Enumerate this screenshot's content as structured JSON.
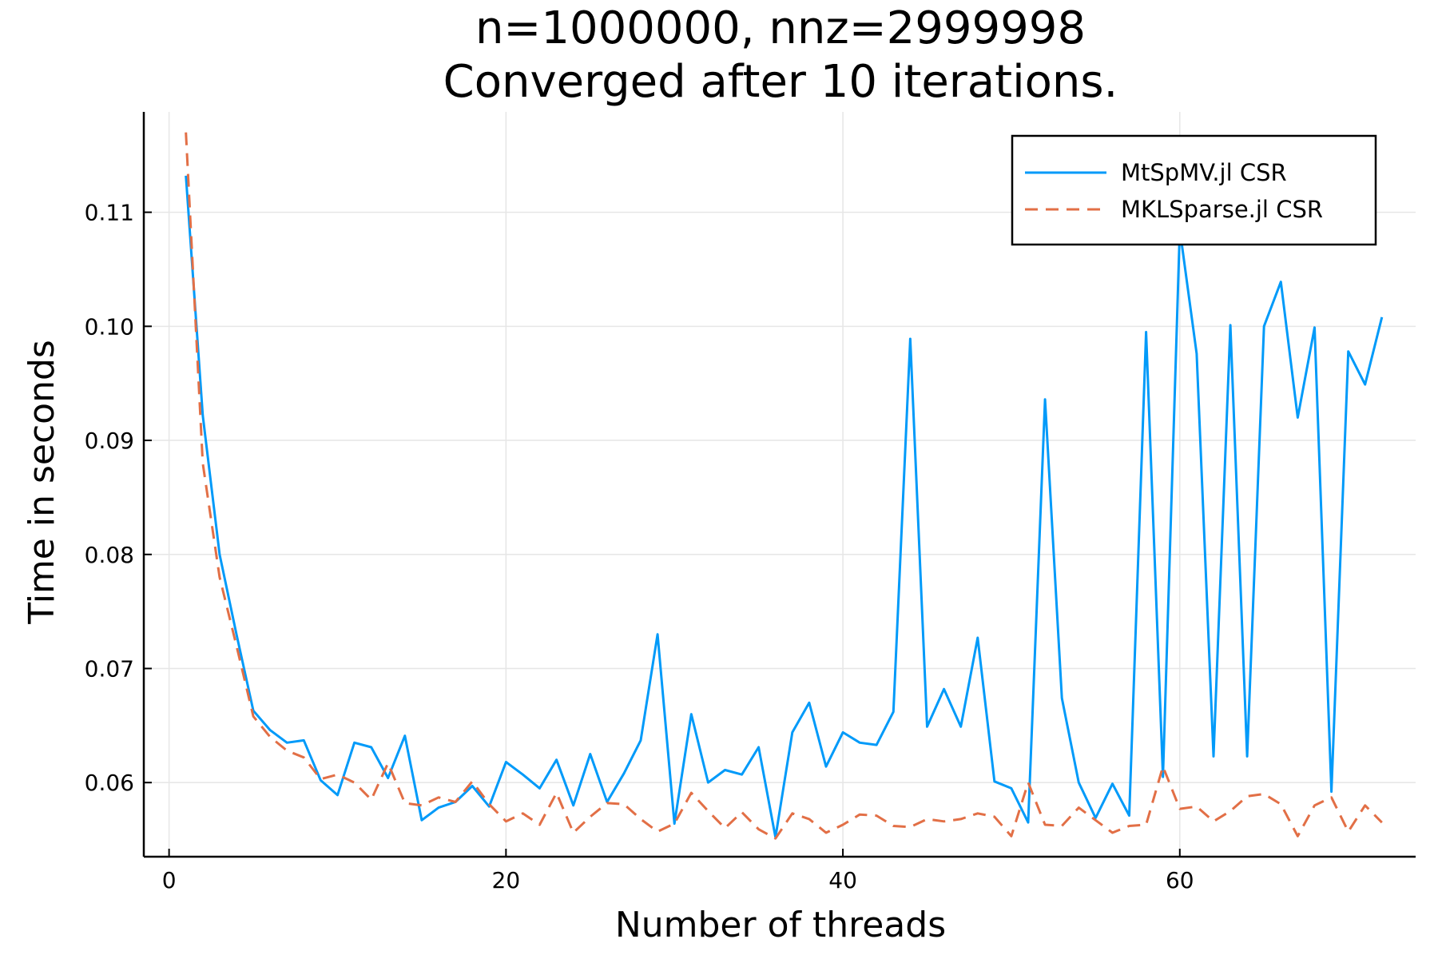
{
  "chart_data": {
    "type": "line",
    "title": [
      "n=1000000, nnz=2999998",
      "Converged after 10 iterations."
    ],
    "xlabel": "Number of threads",
    "ylabel": "Time in seconds",
    "xlim": [
      -1.5,
      74
    ],
    "ylim": [
      0.0535,
      0.1188
    ],
    "xticks": [
      0,
      20,
      40,
      60
    ],
    "xtick_labels": [
      "0",
      "20",
      "40",
      "60"
    ],
    "yticks": [
      0.06,
      0.07,
      0.08,
      0.09,
      0.1,
      0.11
    ],
    "ytick_labels": [
      "0.06",
      "0.07",
      "0.08",
      "0.09",
      "0.10",
      "0.11"
    ],
    "grid": true,
    "legend_position": "top-right",
    "x": [
      1,
      2,
      3,
      4,
      5,
      6,
      7,
      8,
      9,
      10,
      11,
      12,
      13,
      14,
      15,
      16,
      17,
      18,
      19,
      20,
      21,
      22,
      23,
      24,
      25,
      26,
      27,
      28,
      29,
      30,
      31,
      32,
      33,
      34,
      35,
      36,
      37,
      38,
      39,
      40,
      41,
      42,
      43,
      44,
      45,
      46,
      47,
      48,
      49,
      50,
      51,
      52,
      53,
      54,
      55,
      56,
      57,
      58,
      59,
      60,
      61,
      62,
      63,
      64,
      65,
      66,
      67,
      68,
      69,
      70,
      71,
      72
    ],
    "series": [
      {
        "name": "MtSpMV.jl CSR",
        "color": "#009AF9",
        "dash": "solid",
        "values": [
          0.1132,
          0.0922,
          0.08,
          0.073,
          0.0663,
          0.0646,
          0.0635,
          0.0637,
          0.0602,
          0.0589,
          0.0635,
          0.0631,
          0.0604,
          0.0641,
          0.0567,
          0.0578,
          0.0583,
          0.0597,
          0.0579,
          0.0618,
          0.0607,
          0.0595,
          0.062,
          0.058,
          0.0625,
          0.0583,
          0.0608,
          0.0637,
          0.073,
          0.0564,
          0.066,
          0.06,
          0.0611,
          0.0607,
          0.0631,
          0.0552,
          0.0644,
          0.067,
          0.0614,
          0.0644,
          0.0635,
          0.0633,
          0.0662,
          0.0989,
          0.0649,
          0.0682,
          0.0649,
          0.0727,
          0.0601,
          0.0595,
          0.0565,
          0.0936,
          0.0674,
          0.06,
          0.0569,
          0.0599,
          0.0571,
          0.0995,
          0.0605,
          0.1085,
          0.0976,
          0.0623,
          0.1001,
          0.0623,
          0.1,
          0.1039,
          0.092,
          0.0999,
          0.0592,
          0.0978,
          0.0949,
          0.1008
        ]
      },
      {
        "name": "MKLSparse.jl CSR",
        "color": "#E26F46",
        "dash": "dashed",
        "values": [
          0.117,
          0.088,
          0.078,
          0.072,
          0.0658,
          0.064,
          0.0628,
          0.0622,
          0.0603,
          0.0607,
          0.06,
          0.0585,
          0.0617,
          0.0582,
          0.058,
          0.0587,
          0.0583,
          0.0601,
          0.0581,
          0.0566,
          0.0573,
          0.0563,
          0.0591,
          0.0556,
          0.057,
          0.0582,
          0.0581,
          0.0568,
          0.0557,
          0.0564,
          0.0591,
          0.0575,
          0.056,
          0.0574,
          0.0559,
          0.0551,
          0.0573,
          0.0568,
          0.0556,
          0.0563,
          0.0572,
          0.0571,
          0.0562,
          0.0561,
          0.0568,
          0.0566,
          0.0568,
          0.0573,
          0.057,
          0.0553,
          0.06,
          0.0563,
          0.0562,
          0.0578,
          0.0567,
          0.0556,
          0.0562,
          0.0563,
          0.0614,
          0.0577,
          0.0579,
          0.0566,
          0.0575,
          0.0588,
          0.059,
          0.0581,
          0.0553,
          0.058,
          0.0587,
          0.0557,
          0.058,
          0.0565
        ]
      }
    ]
  }
}
